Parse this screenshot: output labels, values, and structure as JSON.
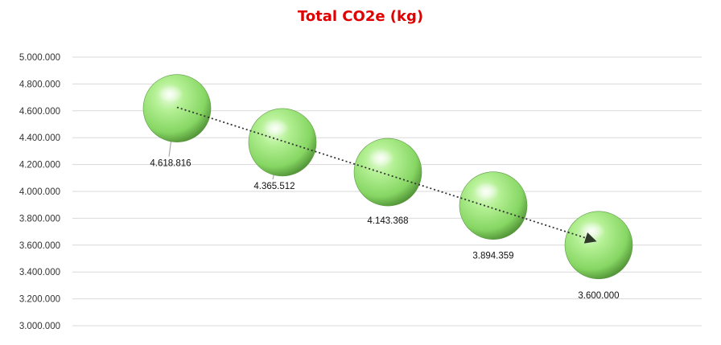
{
  "chart_data": {
    "type": "scatter",
    "title": "Total CO2e (kg)",
    "xlabel": "",
    "ylabel": "",
    "ylim": [
      3000000,
      5000000
    ],
    "ytick_step": 200000,
    "y_tick_labels": [
      "3.000.000",
      "3.200.000",
      "3.400.000",
      "3.600.000",
      "3.800.000",
      "4.000.000",
      "4.200.000",
      "4.400.000",
      "4.600.000",
      "4.800.000",
      "5.000.000"
    ],
    "x": [
      1,
      2,
      3,
      4,
      5
    ],
    "values": [
      4618816,
      4365512,
      4143368,
      3894359,
      3600000
    ],
    "data_labels": [
      "4.618.816",
      "4.365.512",
      "4.143.368",
      "3.894.359",
      "3.600.000"
    ],
    "trendline": "linear",
    "grid": true,
    "legend": "none",
    "colors": {
      "title": "#e00000",
      "marker_light": "#d8f7c4",
      "marker_mid": "#8ee06a",
      "marker_dark": "#3f7a28",
      "grid": "#d9d9d9",
      "trendline": "#333333"
    }
  }
}
